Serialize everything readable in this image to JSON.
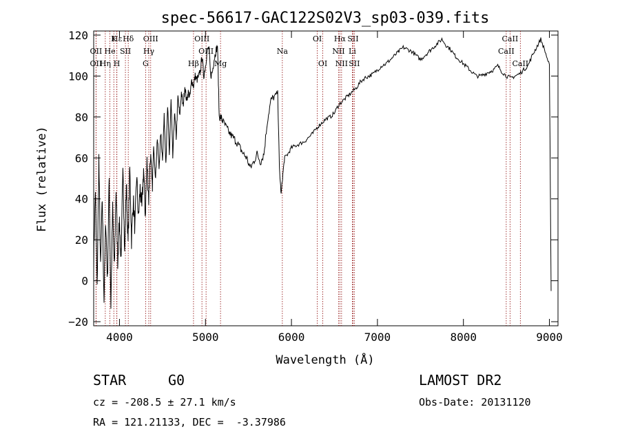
{
  "chart_data": {
    "type": "line",
    "title": "spec-56617-GAC122S02V3_sp03-039.fits",
    "xlabel": "Wavelength (Å)",
    "ylabel": "Flux (relative)",
    "xlim": [
      3700,
      9100
    ],
    "ylim": [
      -22,
      122
    ],
    "xticks": [
      4000,
      5000,
      6000,
      7000,
      8000,
      9000
    ],
    "yticks": [
      -20,
      0,
      20,
      40,
      60,
      80,
      100,
      120
    ],
    "grid": false,
    "line_color": "#000000",
    "marker_color": "#8b0000",
    "series": [
      {
        "x": [
          3700,
          3720,
          3740,
          3760,
          3780,
          3800,
          3820,
          3840,
          3860,
          3880,
          3900,
          3920,
          3940,
          3960,
          3980,
          4000,
          4020,
          4040,
          4060,
          4080,
          4100,
          4120,
          4140,
          4160,
          4180,
          4200,
          4220,
          4240,
          4260,
          4280,
          4300,
          4320,
          4340,
          4360,
          4380,
          4400,
          4420,
          4440,
          4460,
          4480,
          4500,
          4520,
          4540,
          4560,
          4580,
          4600,
          4620,
          4640,
          4660,
          4680,
          4700,
          4720,
          4740,
          4760,
          4780,
          4800,
          4820,
          4840,
          4860,
          4880,
          4900,
          4920,
          4940,
          4960,
          4980,
          5000,
          5020,
          5040,
          5060,
          5080,
          5100,
          5120,
          5140,
          5160,
          5180,
          5200,
          5240,
          5280,
          5320,
          5360,
          5400,
          5440,
          5480,
          5520,
          5560,
          5600,
          5640,
          5680,
          5720,
          5760,
          5800,
          5840,
          5860,
          5880,
          5900,
          5920,
          5960,
          6000,
          6050,
          6100,
          6150,
          6200,
          6250,
          6300,
          6350,
          6400,
          6450,
          6500,
          6550,
          6600,
          6650,
          6700,
          6750,
          6800,
          6850,
          6900,
          6950,
          7000,
          7050,
          7100,
          7150,
          7200,
          7250,
          7300,
          7350,
          7400,
          7450,
          7500,
          7550,
          7600,
          7650,
          7700,
          7750,
          7800,
          7850,
          7900,
          7950,
          8000,
          8050,
          8100,
          8150,
          8200,
          8250,
          8300,
          8350,
          8400,
          8450,
          8500,
          8550,
          8600,
          8650,
          8700,
          8750,
          8800,
          8850,
          8900,
          8950,
          9000,
          9020
        ],
        "y": [
          10,
          45,
          -5,
          60,
          5,
          40,
          -10,
          30,
          0,
          50,
          -12,
          35,
          5,
          45,
          10,
          30,
          8,
          60,
          12,
          48,
          18,
          55,
          20,
          40,
          25,
          52,
          30,
          45,
          35,
          55,
          32,
          58,
          40,
          62,
          45,
          65,
          50,
          70,
          55,
          72,
          60,
          80,
          58,
          85,
          62,
          88,
          60,
          82,
          70,
          90,
          80,
          92,
          85,
          95,
          88,
          92,
          90,
          98,
          95,
          100,
          98,
          100,
          102,
          110,
          100,
          105,
          112,
          114,
          100,
          102,
          108,
          112,
          115,
          80,
          80,
          78,
          75,
          72,
          70,
          68,
          65,
          62,
          60,
          55,
          58,
          62,
          58,
          62,
          78,
          88,
          90,
          92,
          55,
          42,
          52,
          60,
          62,
          65,
          66,
          67,
          68,
          70,
          72,
          75,
          77,
          79,
          80,
          82,
          86,
          88,
          90,
          92,
          94,
          97,
          99,
          100,
          101,
          103,
          105,
          106,
          108,
          110,
          112,
          114,
          113,
          112,
          110,
          108,
          110,
          112,
          114,
          116,
          118,
          115,
          113,
          110,
          108,
          106,
          104,
          102,
          100,
          100,
          101,
          102,
          103,
          105,
          102,
          100,
          99,
          100,
          101,
          103,
          105,
          110,
          114,
          118,
          112,
          105,
          -5
        ]
      }
    ],
    "line_markers": [
      {
        "label": "Hε",
        "wavelength": 3970,
        "row": 0
      },
      {
        "label": "Hδ",
        "wavelength": 4102,
        "row": 0
      },
      {
        "label": "K",
        "wavelength": 3934,
        "row": 0
      },
      {
        "label": "OII",
        "wavelength": 3727,
        "row": 1
      },
      {
        "label": "OIII",
        "wavelength": 4363,
        "row": 0
      },
      {
        "label": "Hγ",
        "wavelength": 4341,
        "row": 1
      },
      {
        "label": "G",
        "wavelength": 4304,
        "row": 2
      },
      {
        "label": "OIII",
        "wavelength": 4959,
        "row": 0
      },
      {
        "label": "OIII",
        "wavelength": 5007,
        "row": 1
      },
      {
        "label": "Hβ",
        "wavelength": 4861,
        "row": 2
      },
      {
        "label": "Mg",
        "wavelength": 5175,
        "row": 2
      },
      {
        "label": "Na",
        "wavelength": 5894,
        "row": 1
      },
      {
        "label": "OI",
        "wavelength": 6300,
        "row": 0
      },
      {
        "label": "OI",
        "wavelength": 6364,
        "row": 2
      },
      {
        "label": "Hα",
        "wavelength": 6563,
        "row": 0
      },
      {
        "label": "SII",
        "wavelength": 6716,
        "row": 0
      },
      {
        "label": "NII",
        "wavelength": 6548,
        "row": 1
      },
      {
        "label": "Li",
        "wavelength": 6708,
        "row": 1
      },
      {
        "label": "NII",
        "wavelength": 6583,
        "row": 2
      },
      {
        "label": "SII",
        "wavelength": 6731,
        "row": 2
      },
      {
        "label": "CaII",
        "wavelength": 8542,
        "row": 0
      },
      {
        "label": "CaII",
        "wavelength": 8498,
        "row": 1
      },
      {
        "label": "CaII",
        "wavelength": 8662,
        "row": 2
      },
      {
        "label": "OII",
        "wavelength": 3727,
        "row": 2
      },
      {
        "label": "He",
        "wavelength": 3889,
        "row": 1
      },
      {
        "label": "Hη",
        "wavelength": 3835,
        "row": 2
      },
      {
        "label": "SII",
        "wavelength": 4069,
        "row": 1
      },
      {
        "label": "H",
        "wavelength": 3969,
        "row": 2
      }
    ]
  },
  "info": {
    "object_class": "STAR",
    "subclass": "G0",
    "survey": "LAMOST DR2",
    "cz": "cz = -208.5 ± 27.1 km/s",
    "obs_date": "Obs-Date: 20131120",
    "coords": "RA = 121.21133, DEC =  -3.37986"
  }
}
